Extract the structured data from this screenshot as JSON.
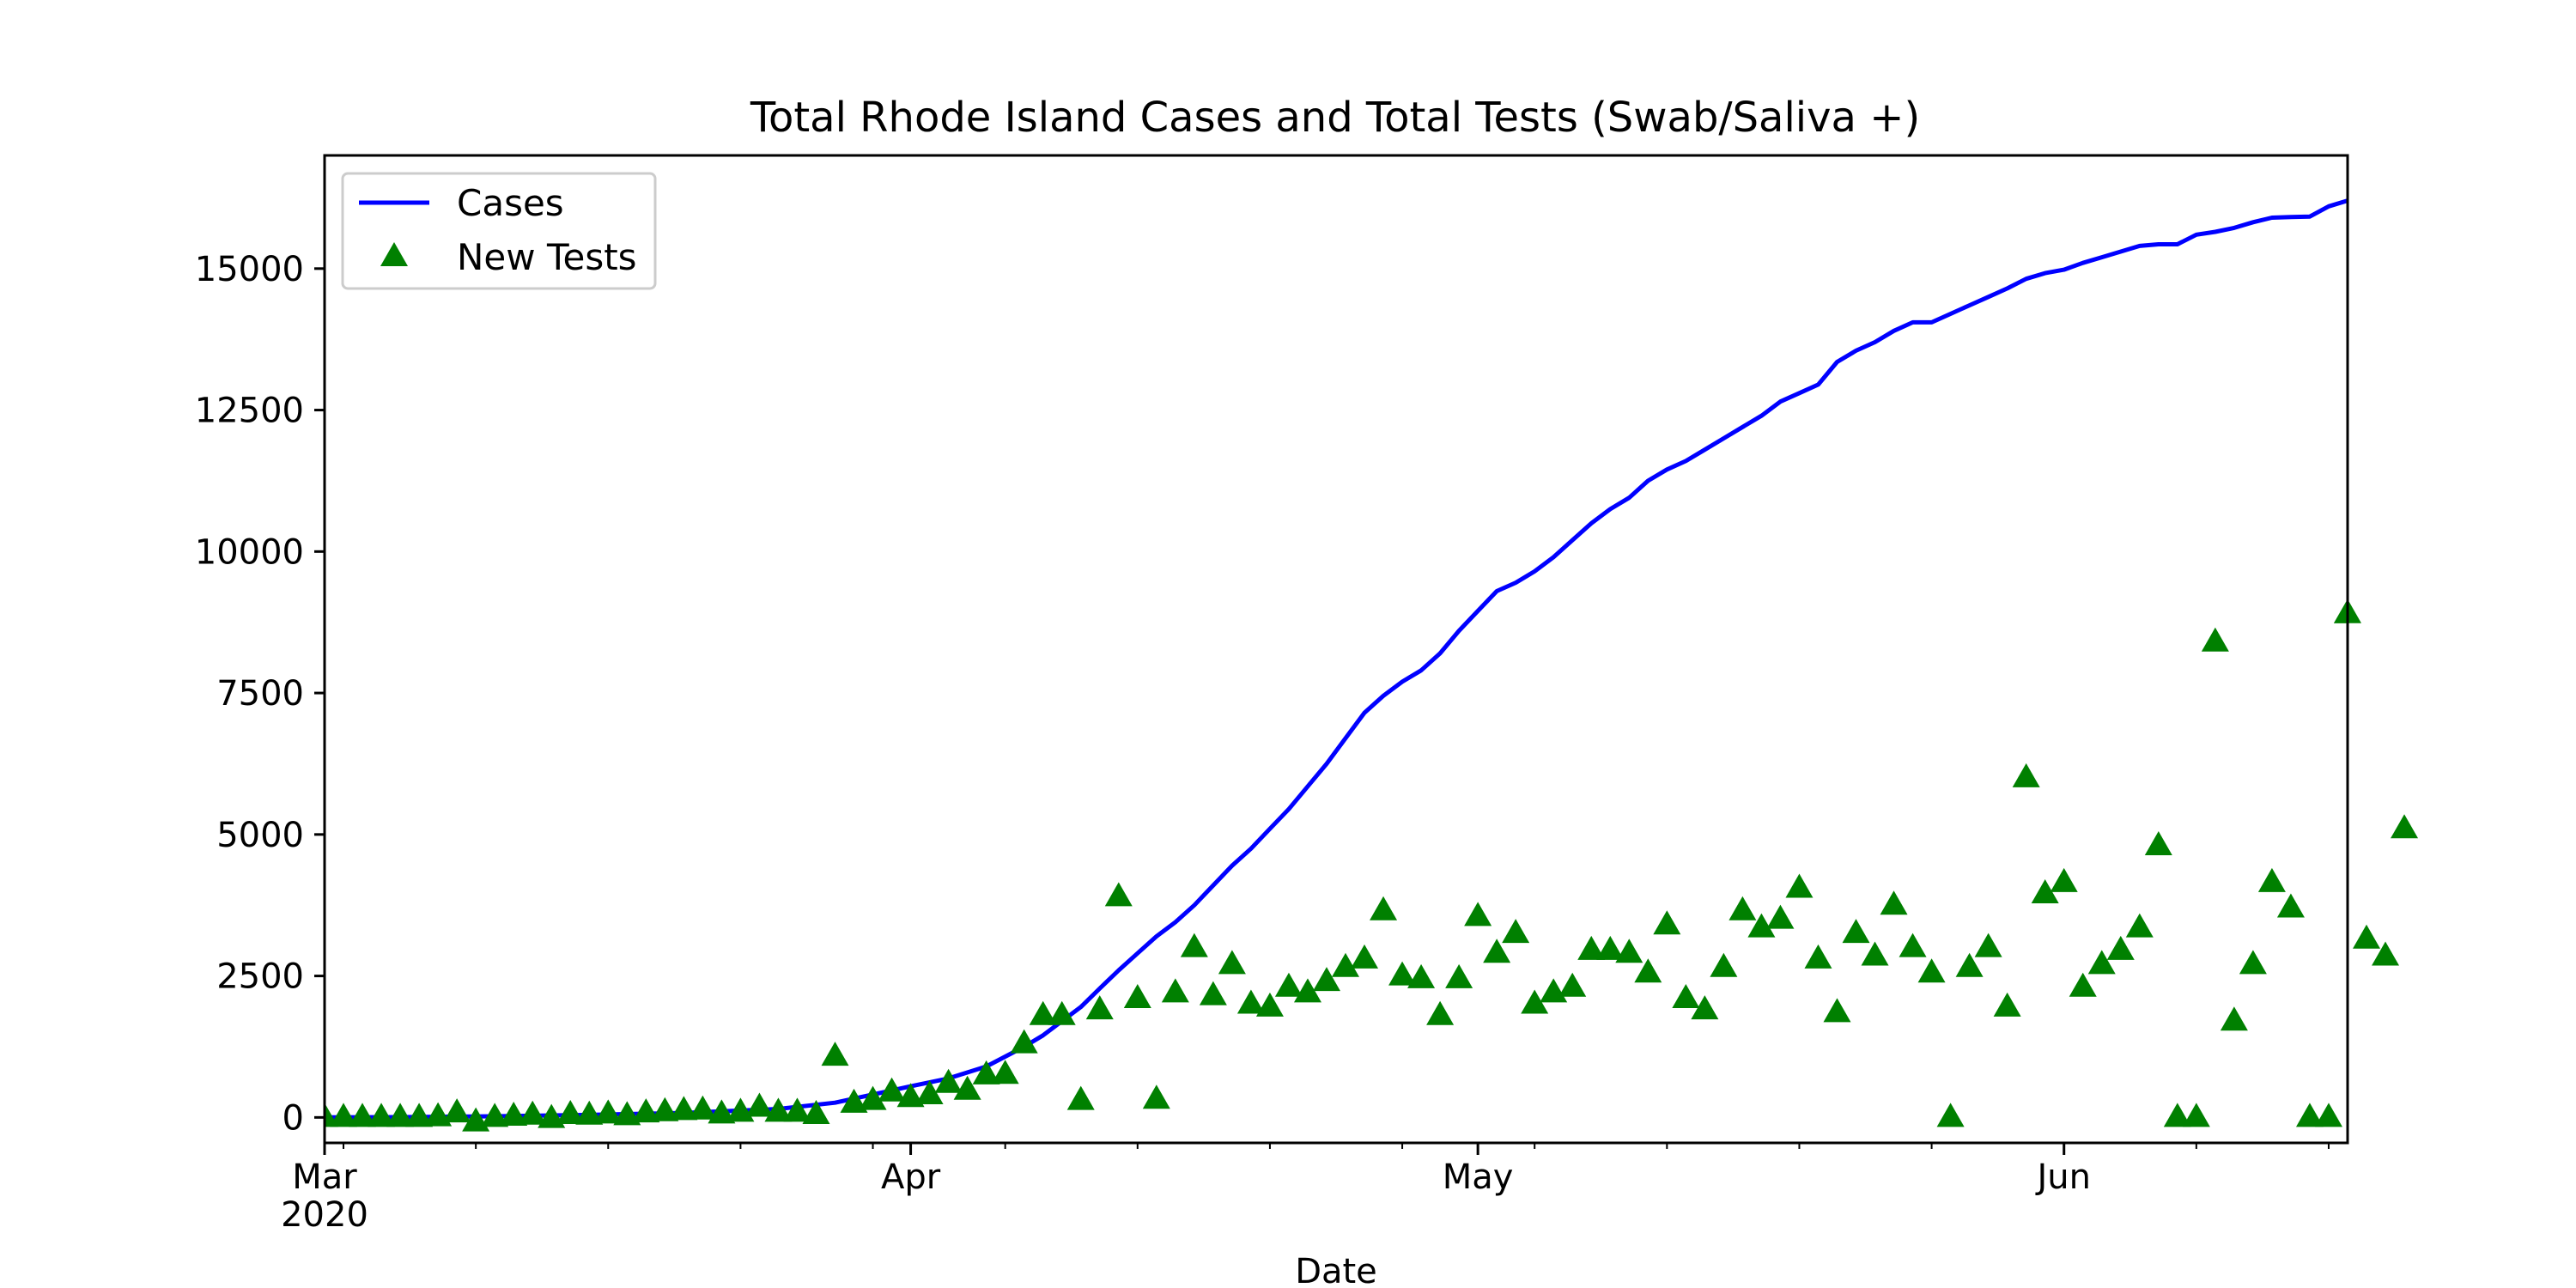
{
  "chart_data": {
    "type": "line",
    "title": "Total Rhode Island Cases and Total Tests (Swab/Saliva +)",
    "xlabel": "Date",
    "ylabel": "",
    "x_range": [
      "2020-03-01",
      "2020-06-16"
    ],
    "ylim": [
      -450,
      17000
    ],
    "grid": false,
    "legend_position": "top-left",
    "x_ticks": [
      {
        "date": "2020-03-01",
        "label": "Mar",
        "sublabel": "2020"
      },
      {
        "date": "2020-04-01",
        "label": "Apr"
      },
      {
        "date": "2020-05-01",
        "label": "May"
      },
      {
        "date": "2020-06-01",
        "label": "Jun"
      }
    ],
    "y_ticks": [
      0,
      2500,
      5000,
      7500,
      10000,
      12500,
      15000
    ],
    "series": [
      {
        "name": "Cases",
        "style": "line",
        "color": "#0000ff",
        "points": [
          [
            "2020-03-01",
            0
          ],
          [
            "2020-03-05",
            5
          ],
          [
            "2020-03-10",
            20
          ],
          [
            "2020-03-15",
            45
          ],
          [
            "2020-03-20",
            80
          ],
          [
            "2020-03-25",
            150
          ],
          [
            "2020-03-28",
            260
          ],
          [
            "2020-04-01",
            550
          ],
          [
            "2020-04-03",
            690
          ],
          [
            "2020-04-05",
            900
          ],
          [
            "2020-04-07",
            1250
          ],
          [
            "2020-04-08",
            1450
          ],
          [
            "2020-04-09",
            1700
          ],
          [
            "2020-04-10",
            1950
          ],
          [
            "2020-04-11",
            2280
          ],
          [
            "2020-04-12",
            2600
          ],
          [
            "2020-04-13",
            2900
          ],
          [
            "2020-04-14",
            3200
          ],
          [
            "2020-04-15",
            3450
          ],
          [
            "2020-04-16",
            3750
          ],
          [
            "2020-04-17",
            4100
          ],
          [
            "2020-04-18",
            4450
          ],
          [
            "2020-04-19",
            4750
          ],
          [
            "2020-04-20",
            5100
          ],
          [
            "2020-04-21",
            5450
          ],
          [
            "2020-04-22",
            5850
          ],
          [
            "2020-04-23",
            6250
          ],
          [
            "2020-04-24",
            6700
          ],
          [
            "2020-04-25",
            7150
          ],
          [
            "2020-04-26",
            7450
          ],
          [
            "2020-04-27",
            7700
          ],
          [
            "2020-04-28",
            7900
          ],
          [
            "2020-04-29",
            8200
          ],
          [
            "2020-04-30",
            8600
          ],
          [
            "2020-05-01",
            8950
          ],
          [
            "2020-05-02",
            9300
          ],
          [
            "2020-05-03",
            9450
          ],
          [
            "2020-05-04",
            9650
          ],
          [
            "2020-05-05",
            9900
          ],
          [
            "2020-05-06",
            10200
          ],
          [
            "2020-05-07",
            10500
          ],
          [
            "2020-05-08",
            10750
          ],
          [
            "2020-05-09",
            10950
          ],
          [
            "2020-05-10",
            11250
          ],
          [
            "2020-05-11",
            11450
          ],
          [
            "2020-05-12",
            11600
          ],
          [
            "2020-05-13",
            11800
          ],
          [
            "2020-05-14",
            12000
          ],
          [
            "2020-05-15",
            12200
          ],
          [
            "2020-05-16",
            12400
          ],
          [
            "2020-05-17",
            12650
          ],
          [
            "2020-05-18",
            12800
          ],
          [
            "2020-05-19",
            12950
          ],
          [
            "2020-05-20",
            13350
          ],
          [
            "2020-05-21",
            13550
          ],
          [
            "2020-05-22",
            13700
          ],
          [
            "2020-05-23",
            13900
          ],
          [
            "2020-05-24",
            14050
          ],
          [
            "2020-05-25",
            14050
          ],
          [
            "2020-05-26",
            14200
          ],
          [
            "2020-05-27",
            14350
          ],
          [
            "2020-05-28",
            14500
          ],
          [
            "2020-05-29",
            14650
          ],
          [
            "2020-05-30",
            14820
          ],
          [
            "2020-05-31",
            14920
          ],
          [
            "2020-06-01",
            14980
          ],
          [
            "2020-06-02",
            15100
          ],
          [
            "2020-06-03",
            15200
          ],
          [
            "2020-06-04",
            15300
          ],
          [
            "2020-06-05",
            15400
          ],
          [
            "2020-06-06",
            15430
          ],
          [
            "2020-06-07",
            15430
          ],
          [
            "2020-06-08",
            15600
          ],
          [
            "2020-06-09",
            15650
          ],
          [
            "2020-06-10",
            15720
          ],
          [
            "2020-06-11",
            15820
          ],
          [
            "2020-06-12",
            15900
          ],
          [
            "2020-06-13",
            15910
          ],
          [
            "2020-06-14",
            15920
          ],
          [
            "2020-06-15",
            16100
          ],
          [
            "2020-06-16",
            16200
          ]
        ]
      },
      {
        "name": "New Tests",
        "style": "marker-triangle",
        "color": "#008000",
        "points": [
          [
            "2020-03-01",
            0
          ],
          [
            "2020-03-02",
            0
          ],
          [
            "2020-03-03",
            0
          ],
          [
            "2020-03-04",
            0
          ],
          [
            "2020-03-05",
            0
          ],
          [
            "2020-03-06",
            0
          ],
          [
            "2020-03-07",
            10
          ],
          [
            "2020-03-08",
            80
          ],
          [
            "2020-03-09",
            -80
          ],
          [
            "2020-03-10",
            0
          ],
          [
            "2020-03-11",
            20
          ],
          [
            "2020-03-12",
            40
          ],
          [
            "2020-03-13",
            -20
          ],
          [
            "2020-03-14",
            50
          ],
          [
            "2020-03-15",
            40
          ],
          [
            "2020-03-16",
            60
          ],
          [
            "2020-03-17",
            30
          ],
          [
            "2020-03-18",
            80
          ],
          [
            "2020-03-19",
            100
          ],
          [
            "2020-03-20",
            120
          ],
          [
            "2020-03-21",
            130
          ],
          [
            "2020-03-22",
            60
          ],
          [
            "2020-03-23",
            90
          ],
          [
            "2020-03-24",
            180
          ],
          [
            "2020-03-25",
            90
          ],
          [
            "2020-03-26",
            90
          ],
          [
            "2020-03-27",
            50
          ],
          [
            "2020-03-28",
            1080
          ],
          [
            "2020-03-29",
            250
          ],
          [
            "2020-03-30",
            300
          ],
          [
            "2020-03-31",
            450
          ],
          [
            "2020-04-01",
            350
          ],
          [
            "2020-04-02",
            400
          ],
          [
            "2020-04-03",
            600
          ],
          [
            "2020-04-04",
            480
          ],
          [
            "2020-04-05",
            750
          ],
          [
            "2020-04-06",
            760
          ],
          [
            "2020-04-07",
            1300
          ],
          [
            "2020-04-08",
            1800
          ],
          [
            "2020-04-09",
            1800
          ],
          [
            "2020-04-10",
            300
          ],
          [
            "2020-04-11",
            1900
          ],
          [
            "2020-04-12",
            3900
          ],
          [
            "2020-04-13",
            2100
          ],
          [
            "2020-04-14",
            320
          ],
          [
            "2020-04-15",
            2200
          ],
          [
            "2020-04-16",
            3000
          ],
          [
            "2020-04-17",
            2150
          ],
          [
            "2020-04-18",
            2700
          ],
          [
            "2020-04-19",
            2000
          ],
          [
            "2020-04-20",
            1950
          ],
          [
            "2020-04-21",
            2300
          ],
          [
            "2020-04-22",
            2200
          ],
          [
            "2020-04-23",
            2400
          ],
          [
            "2020-04-24",
            2650
          ],
          [
            "2020-04-25",
            2800
          ],
          [
            "2020-04-26",
            3650
          ],
          [
            "2020-04-27",
            2500
          ],
          [
            "2020-04-28",
            2450
          ],
          [
            "2020-04-29",
            1800
          ],
          [
            "2020-04-30",
            2450
          ],
          [
            "2020-05-01",
            3550
          ],
          [
            "2020-05-02",
            2900
          ],
          [
            "2020-05-03",
            3250
          ],
          [
            "2020-05-04",
            2000
          ],
          [
            "2020-05-05",
            2200
          ],
          [
            "2020-05-06",
            2300
          ],
          [
            "2020-05-07",
            2950
          ],
          [
            "2020-05-08",
            2950
          ],
          [
            "2020-05-09",
            2900
          ],
          [
            "2020-05-10",
            2550
          ],
          [
            "2020-05-11",
            3400
          ],
          [
            "2020-05-12",
            2100
          ],
          [
            "2020-05-13",
            1900
          ],
          [
            "2020-05-14",
            2650
          ],
          [
            "2020-05-15",
            3650
          ],
          [
            "2020-05-16",
            3350
          ],
          [
            "2020-05-17",
            3500
          ],
          [
            "2020-05-18",
            4050
          ],
          [
            "2020-05-19",
            2800
          ],
          [
            "2020-05-20",
            1850
          ],
          [
            "2020-05-21",
            3250
          ],
          [
            "2020-05-22",
            2850
          ],
          [
            "2020-05-23",
            3750
          ],
          [
            "2020-05-24",
            3000
          ],
          [
            "2020-05-25",
            2550
          ],
          [
            "2020-05-26",
            0
          ],
          [
            "2020-05-27",
            2650
          ],
          [
            "2020-05-28",
            3000
          ],
          [
            "2020-05-29",
            1950
          ],
          [
            "2020-05-30",
            6000
          ],
          [
            "2020-05-31",
            3950
          ],
          [
            "2020-06-01",
            4150
          ],
          [
            "2020-06-02",
            2300
          ],
          [
            "2020-06-03",
            2700
          ],
          [
            "2020-06-04",
            2950
          ],
          [
            "2020-06-05",
            3350
          ],
          [
            "2020-06-06",
            4800
          ],
          [
            "2020-06-07",
            0
          ],
          [
            "2020-06-08",
            0
          ],
          [
            "2020-06-09",
            8400
          ],
          [
            "2020-06-10",
            1700
          ],
          [
            "2020-06-11",
            2700
          ],
          [
            "2020-06-12",
            4150
          ],
          [
            "2020-06-13",
            3700
          ],
          [
            "2020-06-14",
            0
          ],
          [
            "2020-06-15",
            0
          ],
          [
            "2020-06-16",
            8900
          ],
          [
            "2020-06-17",
            3150
          ],
          [
            "2020-06-18",
            2850
          ],
          [
            "2020-06-19",
            5100
          ]
        ]
      }
    ]
  }
}
